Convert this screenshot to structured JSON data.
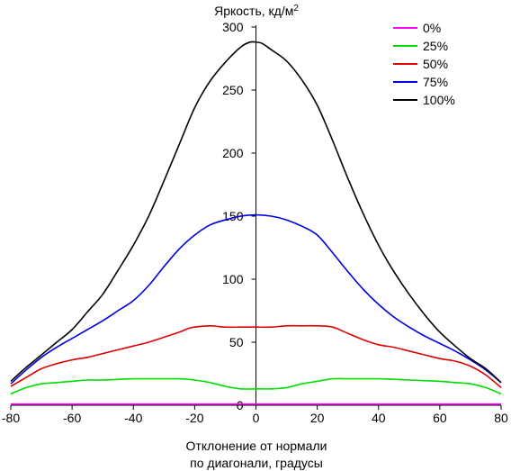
{
  "chart_data": {
    "type": "line",
    "ylabel": "Яркость, кд/м",
    "ylabel_sup": "2",
    "xlabel": [
      "Отклонение от нормали",
      "по диагонали, градусы"
    ],
    "xlim": [
      -80,
      80
    ],
    "ylim": [
      0,
      300
    ],
    "xticks": [
      -80,
      -60,
      -40,
      -20,
      0,
      20,
      40,
      60,
      80
    ],
    "yticks": [
      0,
      50,
      100,
      150,
      200,
      250,
      300
    ],
    "legend_position": "top-right",
    "grid": false,
    "series": [
      {
        "name": "0%",
        "color": "#ff00ff",
        "x": [
          -80,
          -40,
          -30,
          30,
          40,
          80
        ],
        "y": [
          1,
          1,
          1,
          1,
          1,
          1
        ]
      },
      {
        "name": "25%",
        "color": "#00dd00",
        "x": [
          -80,
          -75,
          -70,
          -65,
          -60,
          -55,
          -50,
          -40,
          -30,
          -25,
          -20,
          -15,
          -10,
          -5,
          0,
          5,
          10,
          15,
          20,
          25,
          30,
          40,
          50,
          60,
          65,
          70,
          75,
          80
        ],
        "y": [
          9,
          14,
          17,
          18,
          19,
          20,
          20,
          21,
          21,
          21,
          20,
          18,
          15,
          13,
          13,
          13,
          14,
          17,
          19,
          21,
          21,
          21,
          20,
          19,
          18,
          17,
          14,
          9
        ]
      },
      {
        "name": "50%",
        "color": "#dd0000",
        "x": [
          -80,
          -75,
          -70,
          -65,
          -60,
          -55,
          -50,
          -45,
          -40,
          -35,
          -30,
          -25,
          -22,
          -20,
          -15,
          -10,
          -5,
          0,
          5,
          10,
          15,
          20,
          25,
          30,
          35,
          40,
          45,
          50,
          55,
          60,
          65,
          70,
          75,
          80
        ],
        "y": [
          15,
          22,
          29,
          33,
          36,
          38,
          41,
          44,
          47,
          50,
          54,
          58,
          61,
          62,
          63,
          62,
          62,
          62,
          62,
          63,
          63,
          63,
          62,
          57,
          52,
          48,
          46,
          43,
          40,
          37,
          35,
          31,
          24,
          14
        ]
      },
      {
        "name": "75%",
        "color": "#0000dd",
        "x": [
          -80,
          -75,
          -70,
          -65,
          -60,
          -55,
          -50,
          -45,
          -40,
          -35,
          -30,
          -25,
          -20,
          -15,
          -10,
          -5,
          0,
          5,
          10,
          15,
          20,
          25,
          30,
          35,
          40,
          45,
          50,
          55,
          60,
          65,
          70,
          75,
          80
        ],
        "y": [
          17,
          28,
          38,
          46,
          53,
          60,
          67,
          75,
          83,
          95,
          110,
          124,
          135,
          143,
          147,
          150,
          151,
          150,
          147,
          142,
          135,
          121,
          106,
          92,
          80,
          70,
          62,
          55,
          49,
          43,
          36,
          28,
          18
        ]
      },
      {
        "name": "100%",
        "color": "#000000",
        "x": [
          -80,
          -75,
          -70,
          -65,
          -60,
          -55,
          -50,
          -45,
          -40,
          -35,
          -30,
          -25,
          -20,
          -15,
          -10,
          -5,
          -2,
          0,
          2,
          5,
          10,
          15,
          20,
          25,
          30,
          35,
          40,
          45,
          50,
          55,
          60,
          65,
          70,
          75,
          80
        ],
        "y": [
          19,
          30,
          40,
          50,
          60,
          74,
          88,
          107,
          127,
          150,
          178,
          207,
          236,
          257,
          272,
          284,
          288,
          288,
          287,
          282,
          273,
          258,
          238,
          210,
          180,
          152,
          127,
          106,
          88,
          72,
          58,
          47,
          37,
          29,
          18
        ]
      }
    ]
  }
}
